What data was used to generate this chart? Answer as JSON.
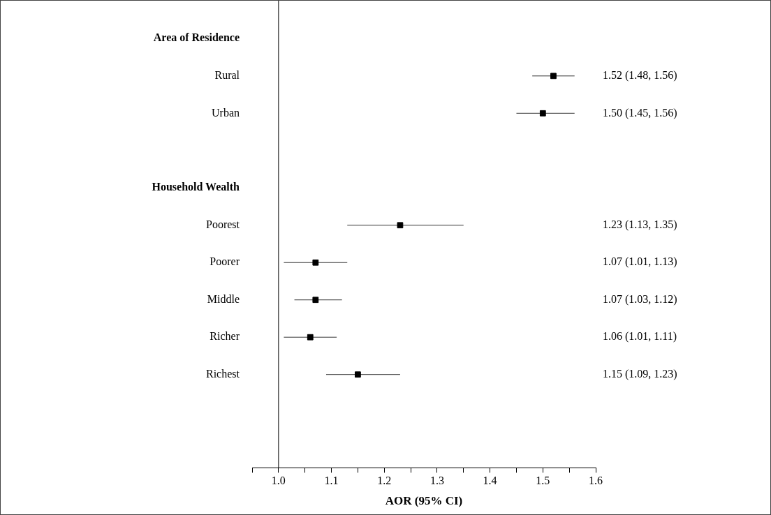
{
  "chart_data": {
    "type": "scatter",
    "orientation": "horizontal",
    "xlabel": "AOR (95% CI)",
    "categories": [
      "Area of Residence",
      "Rural",
      "Urban",
      null,
      "Household Wealth",
      "Poorest",
      "Poorer",
      "Middle",
      "Richer",
      "Richest",
      null,
      null
    ],
    "values": [
      null,
      1.52,
      1.5,
      null,
      null,
      1.23,
      1.07,
      1.07,
      1.06,
      1.15,
      null,
      null
    ],
    "errors": [
      null,
      [
        1.48,
        1.56
      ],
      [
        1.45,
        1.56
      ],
      null,
      null,
      [
        1.13,
        1.35
      ],
      [
        1.01,
        1.13
      ],
      [
        1.03,
        1.12
      ],
      [
        1.01,
        1.11
      ],
      [
        1.09,
        1.23
      ],
      null,
      null
    ],
    "value_labels": [
      null,
      "1.52 (1.48, 1.56)",
      "1.50 (1.45, 1.56)",
      null,
      null,
      "1.23 (1.13, 1.35)",
      "1.07 (1.01, 1.13)",
      "1.07 (1.03, 1.12)",
      "1.06 (1.01, 1.11)",
      "1.15 (1.09, 1.23)",
      null,
      null
    ],
    "color": "#000000",
    "marker": "square",
    "ref_lines": [
      {
        "axis": "x",
        "value": 1.0
      }
    ],
    "xlim": [
      0.95,
      1.6
    ],
    "xticks": [
      {
        "value": 0.95,
        "label": null
      },
      {
        "value": 1.0,
        "label": "1.0"
      },
      {
        "value": 1.05,
        "label": null
      },
      {
        "value": 1.1,
        "label": "1.1"
      },
      {
        "value": 1.15,
        "label": null
      },
      {
        "value": 1.2,
        "label": "1.2"
      },
      {
        "value": 1.25,
        "label": null
      },
      {
        "value": 1.3,
        "label": "1.3"
      },
      {
        "value": 1.35,
        "label": null
      },
      {
        "value": 1.4,
        "label": "1.4"
      },
      {
        "value": 1.45,
        "label": null
      },
      {
        "value": 1.5,
        "label": "1.5"
      },
      {
        "value": 1.55,
        "label": null
      },
      {
        "value": 1.6,
        "label": "1.6"
      }
    ],
    "grid": false,
    "legend": false
  }
}
